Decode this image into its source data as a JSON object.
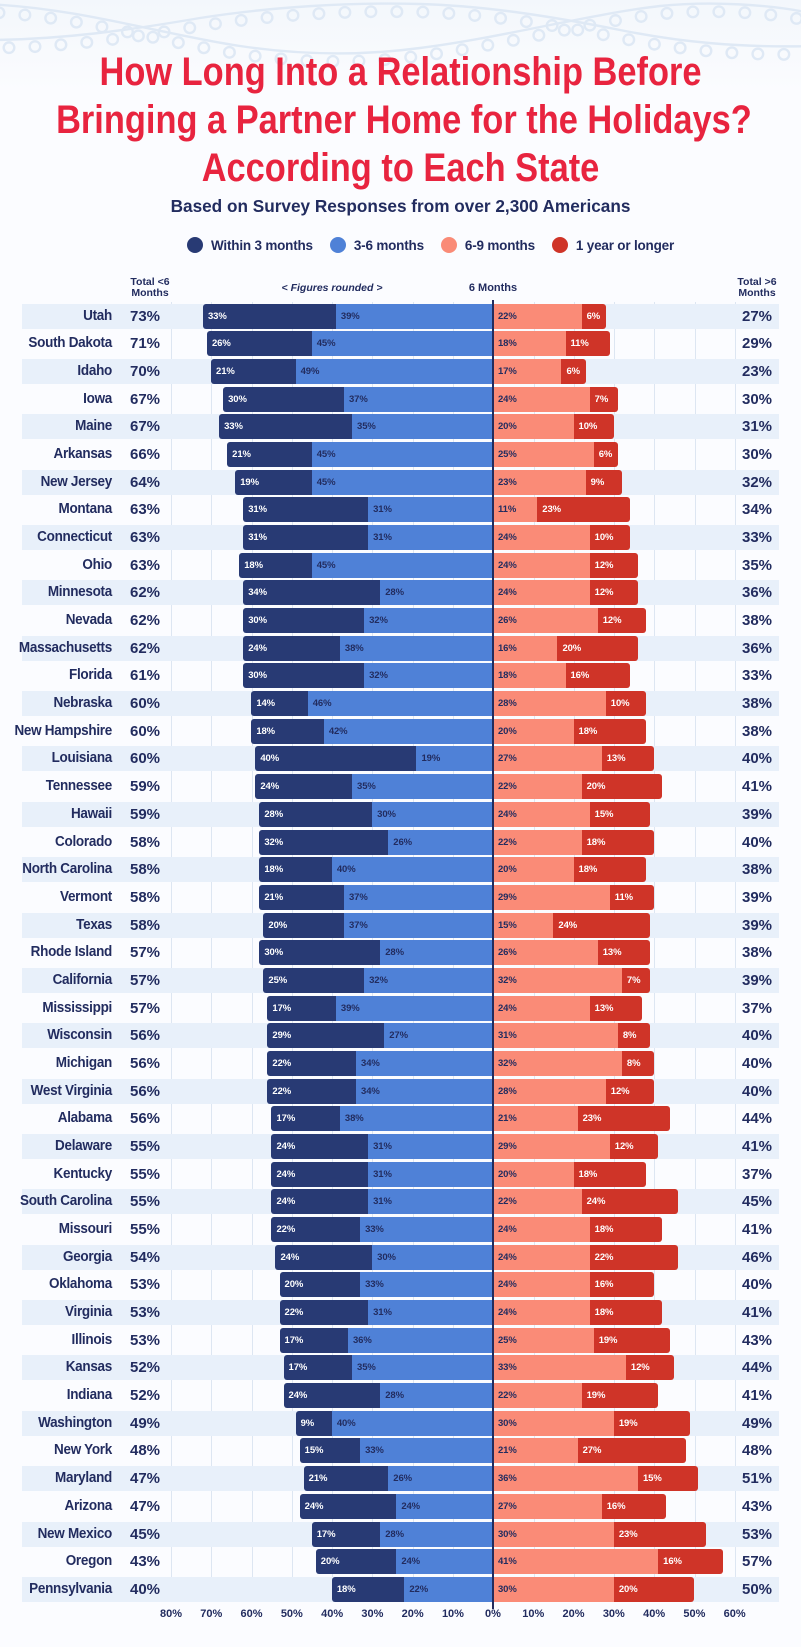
{
  "title": {
    "line1": "How Long Into a Relationship Before",
    "line2": "Bringing a Partner Home for the Holidays?",
    "line3": "According to Each State"
  },
  "subtitle": "Based on Survey Responses from over 2,300 Americans",
  "legend": [
    {
      "label": "Within 3 months",
      "color": "#283a74"
    },
    {
      "label": "3-6 months",
      "color": "#4f81d7"
    },
    {
      "label": "6-9 months",
      "color": "#fa8b77"
    },
    {
      "label": "1 year or longer",
      "color": "#cf3428"
    }
  ],
  "column_headers": {
    "left_total": "Total <6\nMonths",
    "figures_note": "< Figures rounded >",
    "center": "6 Months",
    "right_total": "Total >6\nMonths"
  },
  "axis": {
    "left_ticks": [
      "80%",
      "70%",
      "60%",
      "50%",
      "40%",
      "30%",
      "20%",
      "10%"
    ],
    "center_tick": "0%",
    "right_ticks": [
      "10%",
      "20%",
      "30%",
      "40%",
      "50%",
      "60%"
    ]
  },
  "colors": {
    "within3": "#283a74",
    "m3to6": "#4f81d7",
    "m6to9": "#fa8b77",
    "y1plus": "#cf3428",
    "label_on_dark": "#ffffff",
    "label_on_light": "#222c5f",
    "title_red": "#e8243f",
    "navy_text": "#222c5f",
    "row_band": "#e8f0fa",
    "gridline": "#dde6f2"
  },
  "chart_data": {
    "type": "diverging-stacked-bar",
    "title": "How Long Into a Relationship Before Bringing a Partner Home for the Holidays? According to Each State",
    "subtitle": "Based on Survey Responses from over 2,300 Americans",
    "series_names": [
      "Within 3 months",
      "3-6 months",
      "6-9 months",
      "1 year or longer"
    ],
    "x_axis": {
      "left_max_pct": 80,
      "right_max_pct": 60,
      "center_label": "6 Months",
      "tick_step_pct": 10
    },
    "rows": [
      {
        "state": "Utah",
        "total_under6": 73,
        "within3": 33,
        "m3to6": 39,
        "m6to9": 22,
        "y1plus": 6,
        "total_over6": 27
      },
      {
        "state": "South Dakota",
        "total_under6": 71,
        "within3": 26,
        "m3to6": 45,
        "m6to9": 18,
        "y1plus": 11,
        "total_over6": 29
      },
      {
        "state": "Idaho",
        "total_under6": 70,
        "within3": 21,
        "m3to6": 49,
        "m6to9": 17,
        "y1plus": 6,
        "total_over6": 23
      },
      {
        "state": "Iowa",
        "total_under6": 67,
        "within3": 30,
        "m3to6": 37,
        "m6to9": 24,
        "y1plus": 7,
        "total_over6": 30
      },
      {
        "state": "Maine",
        "total_under6": 67,
        "within3": 33,
        "m3to6": 35,
        "m6to9": 20,
        "y1plus": 10,
        "total_over6": 31
      },
      {
        "state": "Arkansas",
        "total_under6": 66,
        "within3": 21,
        "m3to6": 45,
        "m6to9": 25,
        "y1plus": 6,
        "total_over6": 30
      },
      {
        "state": "New Jersey",
        "total_under6": 64,
        "within3": 19,
        "m3to6": 45,
        "m6to9": 23,
        "y1plus": 9,
        "total_over6": 32
      },
      {
        "state": "Montana",
        "total_under6": 63,
        "within3": 31,
        "m3to6": 31,
        "m6to9": 11,
        "y1plus": 23,
        "total_over6": 34
      },
      {
        "state": "Connecticut",
        "total_under6": 63,
        "within3": 31,
        "m3to6": 31,
        "m6to9": 24,
        "y1plus": 10,
        "total_over6": 33
      },
      {
        "state": "Ohio",
        "total_under6": 63,
        "within3": 18,
        "m3to6": 45,
        "m6to9": 24,
        "y1plus": 12,
        "total_over6": 35
      },
      {
        "state": "Minnesota",
        "total_under6": 62,
        "within3": 34,
        "m3to6": 28,
        "m6to9": 24,
        "y1plus": 12,
        "total_over6": 36
      },
      {
        "state": "Nevada",
        "total_under6": 62,
        "within3": 30,
        "m3to6": 32,
        "m6to9": 26,
        "y1plus": 12,
        "total_over6": 38
      },
      {
        "state": "Massachusetts",
        "total_under6": 62,
        "within3": 24,
        "m3to6": 38,
        "m6to9": 16,
        "y1plus": 20,
        "total_over6": 36
      },
      {
        "state": "Florida",
        "total_under6": 61,
        "within3": 30,
        "m3to6": 32,
        "m6to9": 18,
        "y1plus": 16,
        "total_over6": 33
      },
      {
        "state": "Nebraska",
        "total_under6": 60,
        "within3": 14,
        "m3to6": 46,
        "m6to9": 28,
        "y1plus": 10,
        "total_over6": 38
      },
      {
        "state": "New Hampshire",
        "total_under6": 60,
        "within3": 18,
        "m3to6": 42,
        "m6to9": 20,
        "y1plus": 18,
        "total_over6": 38
      },
      {
        "state": "Louisiana",
        "total_under6": 60,
        "within3": 40,
        "m3to6": 19,
        "m6to9": 27,
        "y1plus": 13,
        "total_over6": 40
      },
      {
        "state": "Tennessee",
        "total_under6": 59,
        "within3": 24,
        "m3to6": 35,
        "m6to9": 22,
        "y1plus": 20,
        "total_over6": 41
      },
      {
        "state": "Hawaii",
        "total_under6": 59,
        "within3": 28,
        "m3to6": 30,
        "m6to9": 24,
        "y1plus": 15,
        "total_over6": 39
      },
      {
        "state": "Colorado",
        "total_under6": 58,
        "within3": 32,
        "m3to6": 26,
        "m6to9": 22,
        "y1plus": 18,
        "total_over6": 40
      },
      {
        "state": "North Carolina",
        "total_under6": 58,
        "within3": 18,
        "m3to6": 40,
        "m6to9": 20,
        "y1plus": 18,
        "total_over6": 38
      },
      {
        "state": "Vermont",
        "total_under6": 58,
        "within3": 21,
        "m3to6": 37,
        "m6to9": 29,
        "y1plus": 11,
        "total_over6": 39
      },
      {
        "state": "Texas",
        "total_under6": 58,
        "within3": 20,
        "m3to6": 37,
        "m6to9": 15,
        "y1plus": 24,
        "total_over6": 39
      },
      {
        "state": "Rhode Island",
        "total_under6": 57,
        "within3": 30,
        "m3to6": 28,
        "m6to9": 26,
        "y1plus": 13,
        "total_over6": 38
      },
      {
        "state": "California",
        "total_under6": 57,
        "within3": 25,
        "m3to6": 32,
        "m6to9": 32,
        "y1plus": 7,
        "total_over6": 39
      },
      {
        "state": "Mississippi",
        "total_under6": 57,
        "within3": 17,
        "m3to6": 39,
        "m6to9": 24,
        "y1plus": 13,
        "total_over6": 37
      },
      {
        "state": "Wisconsin",
        "total_under6": 56,
        "within3": 29,
        "m3to6": 27,
        "m6to9": 31,
        "y1plus": 8,
        "total_over6": 40
      },
      {
        "state": "Michigan",
        "total_under6": 56,
        "within3": 22,
        "m3to6": 34,
        "m6to9": 32,
        "y1plus": 8,
        "total_over6": 40
      },
      {
        "state": "West Virginia",
        "total_under6": 56,
        "within3": 22,
        "m3to6": 34,
        "m6to9": 28,
        "y1plus": 12,
        "total_over6": 40
      },
      {
        "state": "Alabama",
        "total_under6": 56,
        "within3": 17,
        "m3to6": 38,
        "m6to9": 21,
        "y1plus": 23,
        "total_over6": 44
      },
      {
        "state": "Delaware",
        "total_under6": 55,
        "within3": 24,
        "m3to6": 31,
        "m6to9": 29,
        "y1plus": 12,
        "total_over6": 41
      },
      {
        "state": "Kentucky",
        "total_under6": 55,
        "within3": 24,
        "m3to6": 31,
        "m6to9": 20,
        "y1plus": 18,
        "total_over6": 37
      },
      {
        "state": "South Carolina",
        "total_under6": 55,
        "within3": 24,
        "m3to6": 31,
        "m6to9": 22,
        "y1plus": 24,
        "total_over6": 45
      },
      {
        "state": "Missouri",
        "total_under6": 55,
        "within3": 22,
        "m3to6": 33,
        "m6to9": 24,
        "y1plus": 18,
        "total_over6": 41
      },
      {
        "state": "Georgia",
        "total_under6": 54,
        "within3": 24,
        "m3to6": 30,
        "m6to9": 24,
        "y1plus": 22,
        "total_over6": 46
      },
      {
        "state": "Oklahoma",
        "total_under6": 53,
        "within3": 20,
        "m3to6": 33,
        "m6to9": 24,
        "y1plus": 16,
        "total_over6": 40
      },
      {
        "state": "Virginia",
        "total_under6": 53,
        "within3": 22,
        "m3to6": 31,
        "m6to9": 24,
        "y1plus": 18,
        "total_over6": 41
      },
      {
        "state": "Illinois",
        "total_under6": 53,
        "within3": 17,
        "m3to6": 36,
        "m6to9": 25,
        "y1plus": 19,
        "total_over6": 43
      },
      {
        "state": "Kansas",
        "total_under6": 52,
        "within3": 17,
        "m3to6": 35,
        "m6to9": 33,
        "y1plus": 12,
        "total_over6": 44
      },
      {
        "state": "Indiana",
        "total_under6": 52,
        "within3": 24,
        "m3to6": 28,
        "m6to9": 22,
        "y1plus": 19,
        "total_over6": 41
      },
      {
        "state": "Washington",
        "total_under6": 49,
        "within3": 9,
        "m3to6": 40,
        "m6to9": 30,
        "y1plus": 19,
        "total_over6": 49
      },
      {
        "state": "New York",
        "total_under6": 48,
        "within3": 15,
        "m3to6": 33,
        "m6to9": 21,
        "y1plus": 27,
        "total_over6": 48
      },
      {
        "state": "Maryland",
        "total_under6": 47,
        "within3": 21,
        "m3to6": 26,
        "m6to9": 36,
        "y1plus": 15,
        "total_over6": 51
      },
      {
        "state": "Arizona",
        "total_under6": 47,
        "within3": 24,
        "m3to6": 24,
        "m6to9": 27,
        "y1plus": 16,
        "total_over6": 43
      },
      {
        "state": "New Mexico",
        "total_under6": 45,
        "within3": 17,
        "m3to6": 28,
        "m6to9": 30,
        "y1plus": 23,
        "total_over6": 53
      },
      {
        "state": "Oregon",
        "total_under6": 43,
        "within3": 20,
        "m3to6": 24,
        "m6to9": 41,
        "y1plus": 16,
        "total_over6": 57
      },
      {
        "state": "Pennsylvania",
        "total_under6": 40,
        "within3": 18,
        "m3to6": 22,
        "m6to9": 30,
        "y1plus": 20,
        "total_over6": 50
      }
    ]
  }
}
